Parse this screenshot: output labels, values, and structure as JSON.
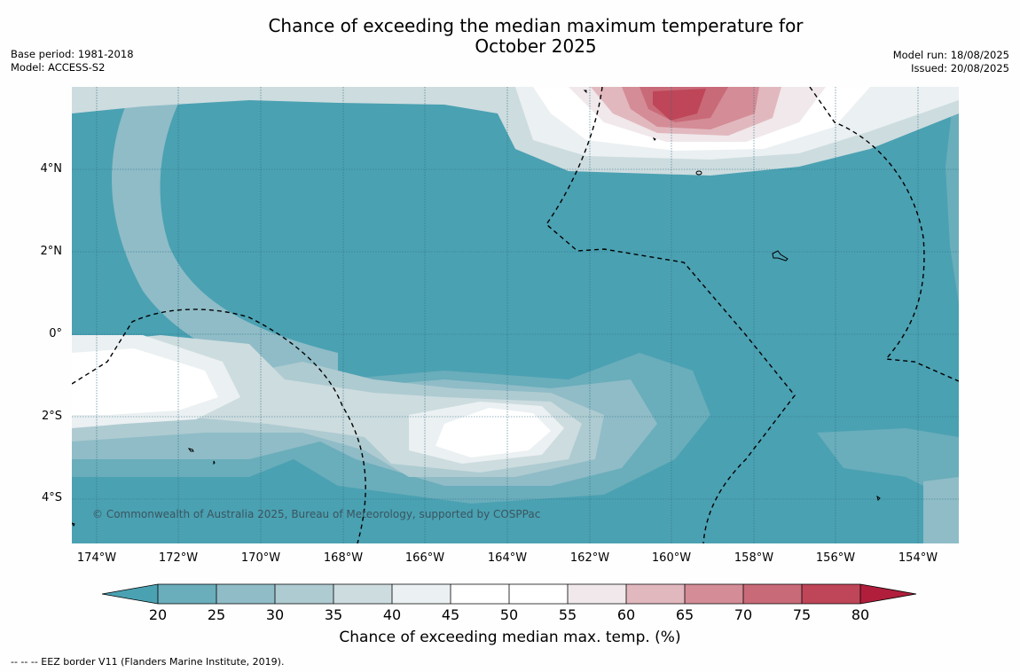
{
  "title": {
    "line1": "Chance of exceeding the median maximum temperature for",
    "line2": "October 2025"
  },
  "meta": {
    "base_period": "Base period: 1981-2018",
    "model": "Model: ACCESS-S2",
    "model_run": "Model run: 18/08/2025",
    "issued": "Issued: 20/08/2025"
  },
  "map": {
    "latitude_labels": [
      "4°N",
      "2°N",
      "0°",
      "2°S",
      "4°S"
    ],
    "longitude_labels": [
      "174°W",
      "172°W",
      "170°W",
      "168°W",
      "166°W",
      "164°W",
      "162°W",
      "160°W",
      "158°W",
      "156°W",
      "154°W"
    ],
    "copyright": "© Commonwealth of Australia 2025, Bureau of Meteorology, supported by COSPPac",
    "grid": true,
    "eez_border_style": "dashed"
  },
  "colorbar": {
    "ticks": [
      "20",
      "25",
      "30",
      "35",
      "40",
      "45",
      "50",
      "55",
      "60",
      "65",
      "70",
      "75",
      "80"
    ],
    "colors": [
      "#4aa1b2",
      "#6aadbb",
      "#8fbcc7",
      "#aecbd1",
      "#cddcdf",
      "#ebf0f2",
      "#ffffff",
      "#ffffff",
      "#f0e8ea",
      "#e2b8bf",
      "#d48c96",
      "#c96a78",
      "#be4658",
      "#b01e3c"
    ],
    "extend": "both",
    "label": "Chance of exceeding median max. temp. (%)"
  },
  "footnote": "-- -- -- EEZ border V11 (Flanders Marine Institute, 2019)."
}
